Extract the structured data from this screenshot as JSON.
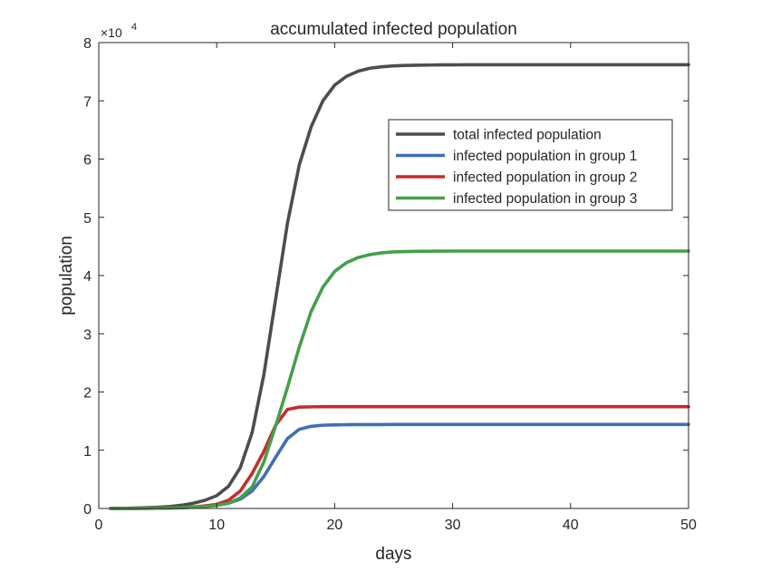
{
  "chart_data": {
    "type": "line",
    "title": "accumulated infected population",
    "xlabel": "days",
    "ylabel": "population",
    "xlim": [
      0,
      50
    ],
    "ylim": [
      0,
      80000
    ],
    "x_ticks": [
      0,
      10,
      20,
      30,
      40,
      50
    ],
    "y_ticks": [
      0,
      10000,
      20000,
      30000,
      40000,
      50000,
      60000,
      70000,
      80000
    ],
    "y_tick_labels": [
      "0",
      "1",
      "2",
      "3",
      "4",
      "5",
      "6",
      "7",
      "8"
    ],
    "y_exponent": {
      "base": "×10",
      "power": "4"
    },
    "grid": false,
    "legend_position": "upper-right",
    "x": [
      1,
      2,
      3,
      4,
      5,
      6,
      7,
      8,
      9,
      10,
      11,
      12,
      13,
      14,
      15,
      16,
      17,
      18,
      19,
      20,
      21,
      22,
      23,
      24,
      25,
      26,
      27,
      28,
      29,
      30,
      31,
      32,
      33,
      34,
      35,
      36,
      37,
      38,
      39,
      40,
      41,
      42,
      43,
      44,
      45,
      46,
      47,
      48,
      49,
      50
    ],
    "series": [
      {
        "name": "total infected population",
        "color": "#4d4d4d",
        "values": [
          0,
          20,
          60,
          120,
          200,
          330,
          550,
          900,
          1400,
          2200,
          3800,
          7000,
          13000,
          23000,
          36000,
          49000,
          59000,
          65500,
          70000,
          72700,
          74200,
          75100,
          75600,
          75850,
          76000,
          76080,
          76120,
          76150,
          76170,
          76180,
          76190,
          76200,
          76200,
          76200,
          76200,
          76200,
          76200,
          76200,
          76200,
          76200,
          76200,
          76200,
          76200,
          76200,
          76200,
          76200,
          76200,
          76200,
          76200,
          76200
        ]
      },
      {
        "name": "infected population in group 1",
        "color": "#3f6fb5",
        "values": [
          0,
          5,
          15,
          30,
          50,
          80,
          130,
          220,
          350,
          550,
          900,
          1600,
          3000,
          5500,
          8800,
          12000,
          13600,
          14100,
          14300,
          14350,
          14380,
          14400,
          14400,
          14400,
          14420,
          14420,
          14420,
          14420,
          14420,
          14430,
          14430,
          14430,
          14430,
          14430,
          14430,
          14430,
          14430,
          14430,
          14430,
          14430,
          14430,
          14430,
          14430,
          14430,
          14430,
          14430,
          14430,
          14430,
          14430,
          14430
        ]
      },
      {
        "name": "infected population in group 2",
        "color": "#c82a2a",
        "values": [
          0,
          5,
          15,
          30,
          55,
          95,
          160,
          270,
          440,
          700,
          1400,
          3000,
          6000,
          9800,
          14300,
          17000,
          17400,
          17450,
          17480,
          17480,
          17480,
          17480,
          17480,
          17480,
          17480,
          17480,
          17480,
          17480,
          17480,
          17480,
          17480,
          17480,
          17480,
          17480,
          17480,
          17480,
          17480,
          17480,
          17480,
          17480,
          17480,
          17480,
          17480,
          17480,
          17480,
          17480,
          17480,
          17480,
          17480,
          17480
        ]
      },
      {
        "name": "infected population in group 3",
        "color": "#43a04a",
        "values": [
          0,
          5,
          15,
          30,
          50,
          80,
          130,
          220,
          340,
          520,
          900,
          1800,
          3700,
          8000,
          14200,
          20800,
          27700,
          33800,
          38000,
          40700,
          42200,
          43100,
          43600,
          43900,
          44050,
          44120,
          44160,
          44180,
          44190,
          44200,
          44200,
          44200,
          44200,
          44200,
          44200,
          44200,
          44200,
          44200,
          44200,
          44200,
          44200,
          44200,
          44200,
          44200,
          44200,
          44200,
          44200,
          44200,
          44200,
          44200
        ]
      }
    ]
  }
}
